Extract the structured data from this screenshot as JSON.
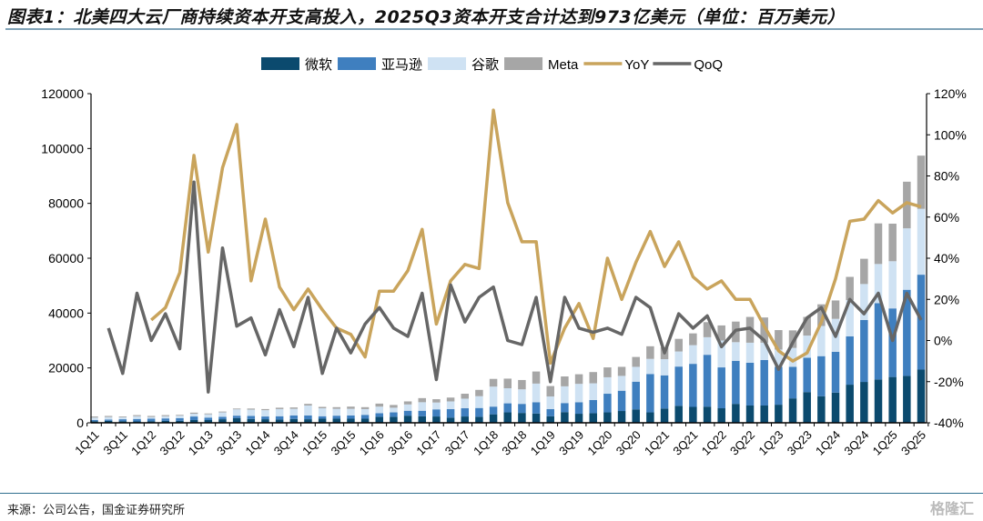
{
  "title": "图表1：北美四大云厂商持续资本开支高投入，2025Q3资本开支合计达到973亿美元（单位：百万美元）",
  "source": "来源：公司公告，国金证券研究所",
  "watermark": "格隆汇",
  "chart_data": {
    "type": "bar",
    "stacked": true,
    "categories": [
      "1Q11",
      "2Q11",
      "3Q11",
      "4Q11",
      "1Q12",
      "2Q12",
      "3Q12",
      "4Q12",
      "1Q13",
      "2Q13",
      "3Q13",
      "4Q13",
      "1Q14",
      "2Q14",
      "3Q14",
      "4Q14",
      "1Q15",
      "2Q15",
      "3Q15",
      "4Q15",
      "1Q16",
      "2Q16",
      "3Q16",
      "4Q16",
      "1Q17",
      "2Q17",
      "3Q17",
      "4Q17",
      "1Q18",
      "2Q18",
      "3Q18",
      "4Q18",
      "1Q19",
      "2Q19",
      "3Q19",
      "4Q19",
      "1Q20",
      "2Q20",
      "3Q20",
      "4Q20",
      "1Q21",
      "2Q21",
      "3Q21",
      "4Q21",
      "1Q22",
      "2Q22",
      "3Q22",
      "4Q22",
      "1Q23",
      "2Q23",
      "3Q23",
      "4Q23",
      "1Q24",
      "2Q24",
      "3Q24",
      "4Q24",
      "1Q25",
      "2Q25",
      "3Q25"
    ],
    "series": [
      {
        "name": "微软",
        "type": "bar",
        "axis": "left",
        "color": "#0b4a6e",
        "values": [
          600,
          700,
          600,
          500,
          600,
          700,
          700,
          1000,
          1000,
          1300,
          1700,
          1400,
          1300,
          1200,
          1400,
          1300,
          1500,
          1500,
          1500,
          1500,
          2200,
          2200,
          2600,
          2400,
          2300,
          1900,
          2300,
          2200,
          3100,
          3800,
          3600,
          3400,
          2400,
          3900,
          3300,
          3500,
          3800,
          4300,
          4900,
          3800,
          5200,
          6200,
          5800,
          5900,
          5300,
          6900,
          6300,
          6300,
          6600,
          8900,
          11200,
          9700,
          11000,
          13900,
          14900,
          15800,
          16700,
          17100,
          19400
        ]
      },
      {
        "name": "亚马逊",
        "type": "bar",
        "axis": "left",
        "color": "#3f7fbf",
        "values": [
          400,
          500,
          700,
          900,
          900,
          900,
          1000,
          1300,
          900,
          900,
          900,
          1100,
          1000,
          1200,
          1300,
          1400,
          900,
          1100,
          1200,
          1400,
          1300,
          1600,
          1800,
          2000,
          2600,
          3100,
          3000,
          3200,
          2800,
          3300,
          3300,
          4100,
          2600,
          3300,
          4200,
          4800,
          6800,
          7400,
          10100,
          14000,
          12100,
          14300,
          15700,
          18900,
          14900,
          15700,
          15600,
          16600,
          13800,
          11500,
          12500,
          14600,
          14900,
          17600,
          22600,
          27800,
          25000,
          31400,
          34600
        ]
      },
      {
        "name": "谷歌",
        "type": "bar",
        "axis": "left",
        "color": "#cfe2f3",
        "values": [
          900,
          900,
          700,
          1000,
          600,
          800,
          900,
          1000,
          1200,
          1600,
          2300,
          2300,
          2300,
          2600,
          2400,
          3600,
          2900,
          2500,
          2400,
          2100,
          2400,
          1700,
          2300,
          3100,
          2500,
          2800,
          3500,
          4300,
          7300,
          5500,
          5300,
          6800,
          4600,
          6100,
          6700,
          6100,
          6000,
          5400,
          5400,
          5500,
          5900,
          5500,
          6800,
          6400,
          9800,
          6800,
          7300,
          6300,
          6300,
          6900,
          8100,
          11000,
          12000,
          13200,
          13100,
          14300,
          17200,
          22400,
          24000
        ]
      },
      {
        "name": "Meta",
        "type": "bar",
        "axis": "left",
        "color": "#a6a6a6",
        "values": [
          400,
          400,
          300,
          400,
          400,
          400,
          300,
          400,
          300,
          300,
          300,
          400,
          400,
          500,
          500,
          600,
          500,
          600,
          800,
          700,
          1100,
          1000,
          1100,
          1500,
          1200,
          1400,
          1800,
          2300,
          2800,
          3500,
          3400,
          4400,
          3800,
          3600,
          3500,
          4100,
          3600,
          3300,
          3600,
          4600,
          4300,
          4600,
          4300,
          5500,
          5500,
          7500,
          9400,
          9200,
          7100,
          6400,
          6800,
          7900,
          6700,
          8500,
          9200,
          14800,
          13700,
          17000,
          19400
        ]
      },
      {
        "name": "YoY",
        "type": "line",
        "axis": "right",
        "unit": "%",
        "color": "#c9a45c",
        "values": [
          null,
          null,
          null,
          null,
          10,
          16,
          33,
          90,
          43,
          84,
          105,
          29,
          59,
          26,
          15,
          25,
          15,
          6,
          3,
          -8,
          24,
          24,
          34,
          54,
          8,
          29,
          37,
          35,
          112,
          67,
          48,
          48,
          -11,
          6,
          18,
          1,
          40,
          20,
          38,
          53,
          36,
          48,
          31,
          25,
          29,
          20,
          20,
          7,
          -5,
          -10,
          -6,
          9,
          30,
          58,
          59,
          68,
          62,
          67,
          65
        ]
      },
      {
        "name": "QoQ",
        "type": "line",
        "axis": "right",
        "unit": "%",
        "color": "#666666",
        "values": [
          null,
          6,
          -16,
          23,
          0,
          13,
          -4,
          77,
          -25,
          45,
          7,
          11,
          -7,
          15,
          -3,
          21,
          -16,
          6,
          -6,
          8,
          16,
          6,
          2,
          23,
          -19,
          27,
          9,
          21,
          26,
          0,
          -2,
          21,
          -20,
          21,
          6,
          4,
          6,
          3,
          21,
          16,
          -6,
          13,
          6,
          12,
          -3,
          5,
          6,
          0,
          -14,
          -1,
          11,
          16,
          2,
          20,
          13,
          23,
          0,
          23,
          10
        ]
      }
    ],
    "left_axis": {
      "min": 0,
      "max": 120000,
      "ticks": [
        "0",
        "20000",
        "40000",
        "60000",
        "80000",
        "100000",
        "120000"
      ]
    },
    "right_axis": {
      "min": -40,
      "max": 120,
      "ticks": [
        "-40%",
        "-20%",
        "0%",
        "20%",
        "40%",
        "60%",
        "80%",
        "100%",
        "120%"
      ]
    },
    "x_tick_labels": [
      "1Q11",
      "3Q11",
      "1Q12",
      "3Q12",
      "1Q13",
      "3Q13",
      "1Q14",
      "3Q14",
      "1Q15",
      "3Q15",
      "1Q16",
      "3Q16",
      "1Q17",
      "3Q17",
      "1Q18",
      "3Q18",
      "1Q19",
      "3Q19",
      "1Q20",
      "3Q20",
      "1Q21",
      "3Q21",
      "1Q22",
      "3Q22",
      "1Q23",
      "3Q23",
      "1Q24",
      "3Q24",
      "1Q25",
      "3Q25"
    ],
    "legend_position": "top-center",
    "grid": false
  }
}
